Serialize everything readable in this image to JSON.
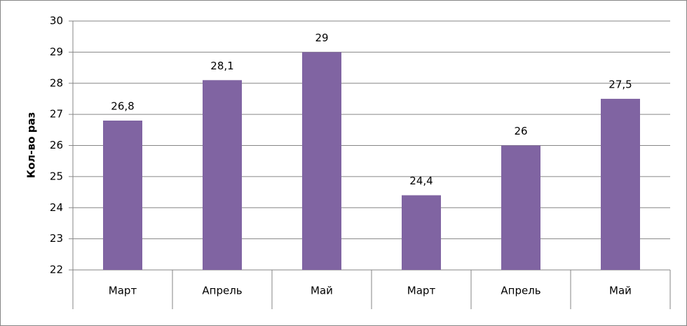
{
  "chart_data": {
    "type": "bar",
    "y_label": "Кол-во раз",
    "categories": [
      "Март",
      "Апрель",
      "Май",
      "Март",
      "Апрель",
      "Май"
    ],
    "values": [
      26.8,
      28.1,
      29,
      24.4,
      26,
      27.5
    ],
    "value_labels": [
      "26,8",
      "28,1",
      "29",
      "24,4",
      "26",
      "27,5"
    ],
    "color": "#8064a2",
    "ylim": [
      22,
      30
    ],
    "yticks": [
      22,
      23,
      24,
      25,
      26,
      27,
      28,
      29,
      30
    ],
    "grid": true
  }
}
